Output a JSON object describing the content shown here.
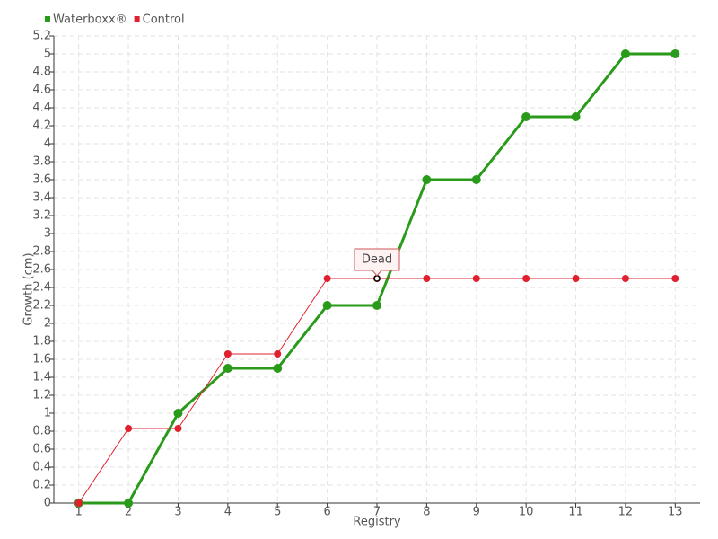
{
  "chart_data": {
    "type": "line",
    "x_label": "Registry",
    "y_label": "Growth (cm)",
    "categories": [
      "1",
      "2",
      "3",
      "4",
      "5",
      "6",
      "7",
      "8",
      "9",
      "10",
      "11",
      "12",
      "13"
    ],
    "series": [
      {
        "name": "Waterboxx®",
        "color": "#2a9a1a",
        "values": [
          0,
          0,
          1,
          1.5,
          1.5,
          2.2,
          2.2,
          3.6,
          3.6,
          4.3,
          4.3,
          5,
          5
        ]
      },
      {
        "name": "Control",
        "color": "#e0202e",
        "values": [
          0,
          0.83,
          0.83,
          1.66,
          1.66,
          2.5,
          2.5,
          2.5,
          2.5,
          2.5,
          2.5,
          2.5,
          2.5
        ]
      }
    ],
    "annotations": [
      {
        "text": "Dead",
        "series": "Control",
        "category": "7"
      }
    ],
    "ylim": [
      0,
      5.2
    ],
    "yticks": [
      0,
      0.2,
      0.4,
      0.6,
      0.8,
      1,
      1.2,
      1.4,
      1.6,
      1.8,
      2,
      2.2,
      2.4,
      2.6,
      2.8,
      3,
      3.2,
      3.4,
      3.6,
      3.8,
      4,
      4.2,
      4.4,
      4.6,
      4.8,
      5,
      5.2
    ],
    "grid": true,
    "legend": "top-left"
  }
}
